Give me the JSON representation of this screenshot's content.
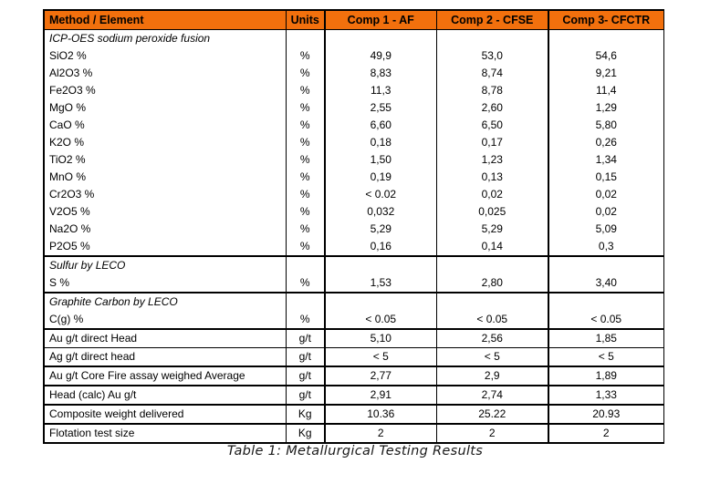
{
  "table": {
    "header_bg": "#F2700D",
    "border_color": "#000000",
    "columns": [
      "Method / Element",
      "Units",
      "Comp 1 - AF",
      "Comp 2 - CFSE",
      "Comp 3- CFCTR"
    ],
    "rows": [
      {
        "type": "section",
        "label": "ICP-OES sodium peroxide fusion",
        "units": "",
        "values": [
          "",
          "",
          ""
        ],
        "border_top": "none"
      },
      {
        "type": "data",
        "label": "SiO2 %",
        "units": "%",
        "values": [
          "49,9",
          "53,0",
          "54,6"
        ],
        "border_top": "none"
      },
      {
        "type": "data",
        "label": "Al2O3 %",
        "units": "%",
        "values": [
          "8,83",
          "8,74",
          "9,21"
        ],
        "border_top": "none"
      },
      {
        "type": "data",
        "label": "Fe2O3 %",
        "units": "%",
        "values": [
          "11,3",
          "8,78",
          "11,4"
        ],
        "border_top": "none"
      },
      {
        "type": "data",
        "label": "MgO %",
        "units": "%",
        "values": [
          "2,55",
          "2,60",
          "1,29"
        ],
        "border_top": "none"
      },
      {
        "type": "data",
        "label": "CaO %",
        "units": "%",
        "values": [
          "6,60",
          "6,50",
          "5,80"
        ],
        "border_top": "none"
      },
      {
        "type": "data",
        "label": "K2O %",
        "units": "%",
        "values": [
          "0,18",
          "0,17",
          "0,26"
        ],
        "border_top": "none"
      },
      {
        "type": "data",
        "label": "TiO2 %",
        "units": "%",
        "values": [
          "1,50",
          "1,23",
          "1,34"
        ],
        "border_top": "none"
      },
      {
        "type": "data",
        "label": "MnO %",
        "units": "%",
        "values": [
          "0,19",
          "0,13",
          "0,15"
        ],
        "border_top": "none"
      },
      {
        "type": "data",
        "label": "Cr2O3 %",
        "units": "%",
        "values": [
          "< 0.02",
          "0,02",
          "0,02"
        ],
        "border_top": "none"
      },
      {
        "type": "data",
        "label": "V2O5 %",
        "units": "%",
        "values": [
          "0,032",
          "0,025",
          "0,02"
        ],
        "border_top": "none"
      },
      {
        "type": "data",
        "label": "Na2O %",
        "units": "%",
        "values": [
          "5,29",
          "5,29",
          "5,09"
        ],
        "border_top": "none"
      },
      {
        "type": "data",
        "label": "P2O5 %",
        "units": "%",
        "values": [
          "0,16",
          "0,14",
          "0,3"
        ],
        "border_top": "none"
      },
      {
        "type": "section",
        "label": "Sulfur by LECO",
        "units": "",
        "values": [
          "",
          "",
          ""
        ],
        "border_top": "thick"
      },
      {
        "type": "data",
        "label": "S %",
        "units": "%",
        "values": [
          "1,53",
          "2,80",
          "3,40"
        ],
        "border_top": "none"
      },
      {
        "type": "section",
        "label": "Graphite Carbon by LECO",
        "units": "",
        "values": [
          "",
          "",
          ""
        ],
        "border_top": "thick"
      },
      {
        "type": "data",
        "label": "C(g) %",
        "units": "%",
        "values": [
          "< 0.05",
          "< 0.05",
          "< 0.05"
        ],
        "border_top": "none"
      },
      {
        "type": "data",
        "label": "Au g/t direct Head",
        "units": "g/t",
        "values": [
          "5,10",
          "2,56",
          "1,85"
        ],
        "border_top": "thick"
      },
      {
        "type": "data",
        "label": "Ag g/t direct head",
        "units": "g/t",
        "values": [
          "< 5",
          "< 5",
          "< 5"
        ],
        "border_top": "thin"
      },
      {
        "type": "data",
        "label": "Au g/t Core Fire assay weighed Average",
        "units": "g/t",
        "values": [
          "2,77",
          "2,9",
          "1,89"
        ],
        "border_top": "thick"
      },
      {
        "type": "data",
        "label": "Head (calc) Au g/t",
        "units": "g/t",
        "values": [
          "2,91",
          "2,74",
          "1,33"
        ],
        "border_top": "thick"
      },
      {
        "type": "data",
        "label": "Composite weight delivered",
        "units": "Kg",
        "values": [
          "10.36",
          "25.22",
          "20.93"
        ],
        "border_top": "thick"
      },
      {
        "type": "data",
        "label": "Flotation test size",
        "units": "Kg",
        "values": [
          "2",
          "2",
          "2"
        ],
        "border_top": "thick"
      }
    ]
  },
  "caption": "Table 1: Metallurgical Testing Results"
}
